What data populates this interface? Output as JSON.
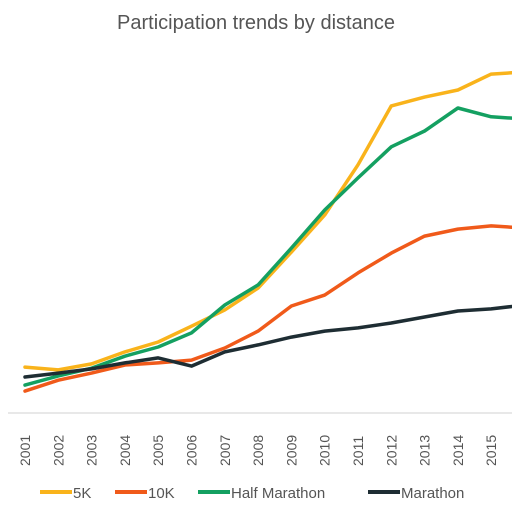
{
  "chart_data": {
    "type": "line",
    "title": "Participation trends by distance",
    "categories": [
      "2001",
      "2002",
      "2003",
      "2004",
      "2005",
      "2006",
      "2007",
      "2008",
      "2009",
      "2010",
      "2011",
      "2012",
      "2013",
      "2014",
      "2015",
      null
    ],
    "ylim": [
      0,
      100
    ],
    "series": [
      {
        "name": "5K",
        "color": "#f9b31b",
        "values": [
          13.0,
          12.2,
          13.9,
          17.3,
          20.1,
          24.6,
          29.2,
          35.4,
          45.6,
          56.1,
          70.3,
          87.0,
          89.5,
          91.5,
          96.0,
          96.6
        ]
      },
      {
        "name": "10K",
        "color": "#f05a1a",
        "values": [
          6.2,
          9.3,
          11.3,
          13.6,
          14.2,
          15.0,
          18.4,
          23.2,
          30.3,
          33.4,
          39.7,
          45.3,
          50.1,
          52.1,
          53.0,
          52.4
        ]
      },
      {
        "name": "Half Marathon",
        "color": "#14a061",
        "values": [
          7.9,
          10.5,
          12.7,
          16.1,
          18.7,
          22.7,
          30.6,
          36.3,
          46.7,
          57.5,
          66.6,
          75.4,
          79.9,
          86.4,
          83.9,
          83.3
        ]
      },
      {
        "name": "Marathon",
        "color": "#1e2d33",
        "values": [
          10.2,
          11.3,
          12.5,
          14.2,
          15.6,
          13.3,
          17.3,
          19.3,
          21.5,
          23.2,
          24.1,
          25.5,
          27.2,
          28.9,
          29.5,
          30.6
        ]
      }
    ]
  }
}
